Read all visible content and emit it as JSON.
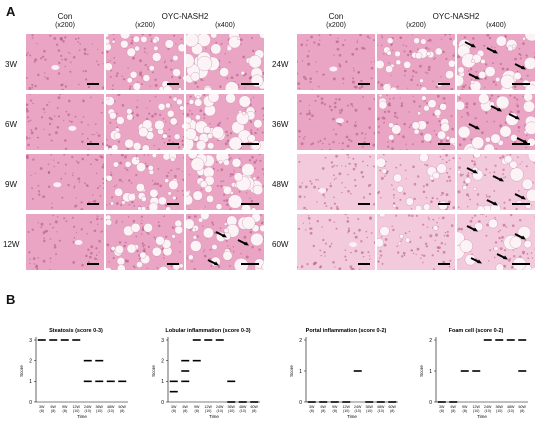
{
  "panel_a": {
    "label": "A",
    "left": {
      "group1": "Con",
      "group2": "OYC-NASH2",
      "mag1": "(x200)",
      "mag2": "(x200)",
      "mag3": "(x400)",
      "rows": [
        "3W",
        "6W",
        "9W",
        "12W"
      ]
    },
    "right": {
      "group1": "Con",
      "group2": "OYC-NASH2",
      "mag1": "(x200)",
      "mag2": "(x200)",
      "mag3": "(x400)",
      "rows": [
        "24W",
        "36W",
        "48W",
        "60W"
      ]
    }
  },
  "panel_b": {
    "label": "B"
  },
  "colors": {
    "he_pink": "#e9a5c3",
    "he_light": "#f3c9dc",
    "he_dark": "#b0527e",
    "arrow": "#000000"
  },
  "chart_data": [
    {
      "type": "scatter",
      "title": "Steatosis (score 0-3)",
      "ylabel": "Score",
      "xlabel": "Time",
      "ylim": [
        0,
        3
      ],
      "yticks": [
        "0",
        "1",
        "2",
        "3"
      ],
      "categories": [
        "3W\n(8)",
        "6W\n(8)",
        "9W\n(8)",
        "12W\n(10)",
        "24W\n(10)",
        "36W\n(10)",
        "48W\n(10)",
        "60W\n(8)"
      ],
      "values": [
        [
          3
        ],
        [
          3
        ],
        [
          3
        ],
        [
          3
        ],
        [
          2,
          1
        ],
        [
          2,
          1
        ],
        [
          1
        ],
        [
          1
        ]
      ]
    },
    {
      "type": "scatter",
      "title": "Lobular inflammation (score 0-3)",
      "ylabel": "Score",
      "xlabel": "Time",
      "ylim": [
        0,
        3
      ],
      "yticks": [
        "0",
        "1",
        "2",
        "3"
      ],
      "categories": [
        "3W\n(8)",
        "6W\n(8)",
        "9W\n(8)",
        "12W\n(10)",
        "24W\n(10)",
        "36W\n(10)",
        "48W\n(10)",
        "60W\n(8)"
      ],
      "values": [
        [
          1,
          0.5
        ],
        [
          2,
          1.5,
          1
        ],
        [
          3,
          2
        ],
        [
          3
        ],
        [
          3
        ],
        [
          1,
          0
        ],
        [
          0
        ],
        [
          0
        ]
      ]
    },
    {
      "type": "scatter",
      "title": "Portal inflammation (score 0-2)",
      "ylabel": "Score",
      "xlabel": "Time",
      "ylim": [
        0,
        2
      ],
      "yticks": [
        "0",
        "1",
        "2"
      ],
      "categories": [
        "3W\n(8)",
        "6W\n(8)",
        "9W\n(8)",
        "12W\n(10)",
        "24W\n(10)",
        "36W\n(10)",
        "48W\n(10)",
        "60W\n(8)"
      ],
      "values": [
        [
          0
        ],
        [
          0
        ],
        [
          0
        ],
        [
          0
        ],
        [
          1
        ],
        [
          0
        ],
        [
          0
        ],
        [
          0
        ]
      ]
    },
    {
      "type": "scatter",
      "title": "Foam cell (score 0-2)",
      "ylabel": "Score",
      "xlabel": "Time",
      "ylim": [
        0,
        2
      ],
      "yticks": [
        "0",
        "1",
        "2"
      ],
      "categories": [
        "3W\n(8)",
        "6W\n(8)",
        "9W\n(8)",
        "12W\n(10)",
        "24W\n(10)",
        "36W\n(10)",
        "48W\n(10)",
        "60W\n(8)"
      ],
      "values": [
        [
          0
        ],
        [
          0
        ],
        [
          1
        ],
        [
          1
        ],
        [
          2
        ],
        [
          2
        ],
        [
          2
        ],
        [
          2,
          1
        ]
      ]
    }
  ]
}
